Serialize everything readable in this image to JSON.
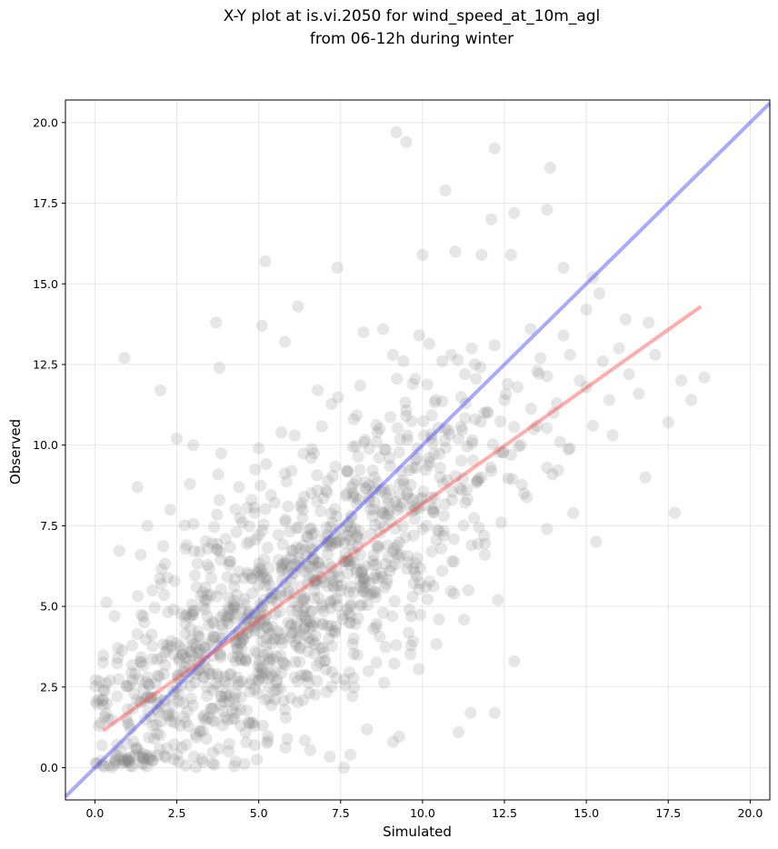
{
  "chart_data": {
    "type": "scatter",
    "title": [
      "X-Y plot at is.vi.2050 for wind_speed_at_10m_agl",
      "from 06-12h during winter"
    ],
    "xlabel": "Simulated",
    "ylabel": "Observed",
    "xlim": [
      -0.9,
      20.6
    ],
    "ylim": [
      -1.0,
      20.7
    ],
    "xticks": [
      0.0,
      2.5,
      5.0,
      7.5,
      10.0,
      12.5,
      15.0,
      17.5,
      20.0
    ],
    "yticks": [
      0.0,
      2.5,
      5.0,
      7.5,
      10.0,
      12.5,
      15.0,
      17.5,
      20.0
    ],
    "xtick_labels": [
      "0.0",
      "2.5",
      "5.0",
      "7.5",
      "10.0",
      "12.5",
      "15.0",
      "17.5",
      "20.0"
    ],
    "ytick_labels": [
      "0.0",
      "2.5",
      "5.0",
      "7.5",
      "10.0",
      "12.5",
      "15.0",
      "17.5",
      "20.0"
    ],
    "grid": true,
    "point_color": "#808080",
    "sample_points": [
      [
        0.9,
        12.7
      ],
      [
        2.0,
        11.7
      ],
      [
        3.7,
        13.8
      ],
      [
        3.8,
        12.4
      ],
      [
        5.1,
        13.7
      ],
      [
        5.2,
        15.7
      ],
      [
        6.2,
        14.3
      ],
      [
        5.8,
        13.2
      ],
      [
        7.4,
        15.5
      ],
      [
        9.2,
        19.7
      ],
      [
        9.5,
        19.4
      ],
      [
        10.7,
        17.9
      ],
      [
        12.2,
        19.2
      ],
      [
        12.1,
        17.0
      ],
      [
        13.9,
        18.6
      ],
      [
        13.8,
        17.3
      ],
      [
        12.8,
        17.2
      ],
      [
        10.0,
        15.9
      ],
      [
        11.0,
        16.0
      ],
      [
        11.8,
        15.9
      ],
      [
        12.7,
        15.9
      ],
      [
        14.3,
        15.5
      ],
      [
        15.2,
        15.2
      ],
      [
        15.4,
        14.7
      ],
      [
        16.2,
        13.9
      ],
      [
        16.9,
        13.8
      ],
      [
        17.1,
        12.8
      ],
      [
        17.9,
        12.0
      ],
      [
        18.6,
        12.1
      ],
      [
        18.2,
        11.4
      ],
      [
        17.5,
        10.7
      ],
      [
        16.8,
        9.0
      ],
      [
        17.7,
        7.9
      ],
      [
        15.3,
        7.0
      ],
      [
        14.6,
        7.9
      ],
      [
        13.8,
        7.4
      ],
      [
        12.8,
        3.3
      ],
      [
        12.2,
        1.7
      ],
      [
        11.1,
        1.1
      ],
      [
        9.1,
        0.8
      ],
      [
        7.8,
        0.4
      ],
      [
        7.6,
        0.0
      ],
      [
        1.3,
        8.7
      ],
      [
        1.6,
        7.5
      ],
      [
        2.3,
        8.0
      ],
      [
        2.9,
        8.8
      ],
      [
        3.2,
        6.7
      ],
      [
        3.8,
        8.3
      ],
      [
        4.4,
        8.7
      ],
      [
        5.0,
        9.9
      ],
      [
        6.1,
        10.3
      ],
      [
        6.8,
        11.7
      ],
      [
        8.2,
        13.5
      ],
      [
        8.8,
        13.6
      ],
      [
        9.9,
        13.4
      ],
      [
        10.6,
        12.6
      ],
      [
        11.6,
        12.5
      ],
      [
        12.6,
        11.9
      ],
      [
        13.5,
        10.6
      ],
      [
        14.2,
        10.1
      ],
      [
        0.4,
        1.5
      ],
      [
        0.7,
        3.4
      ],
      [
        0.9,
        0.2
      ],
      [
        1.2,
        2.3
      ],
      [
        1.5,
        4.5
      ],
      [
        1.8,
        0.9
      ],
      [
        2.1,
        2.9
      ],
      [
        2.4,
        4.9
      ],
      [
        2.6,
        1.3
      ],
      [
        2.9,
        3.6
      ],
      [
        3.1,
        5.6
      ],
      [
        3.4,
        0.9
      ],
      [
        3.6,
        2.4
      ],
      [
        3.9,
        4.3
      ],
      [
        4.1,
        6.4
      ],
      [
        4.3,
        1.7
      ],
      [
        4.6,
        3.3
      ],
      [
        4.8,
        5.4
      ],
      [
        5.0,
        7.2
      ],
      [
        5.2,
        2.1
      ],
      [
        5.5,
        4.0
      ],
      [
        5.7,
        6.1
      ],
      [
        5.9,
        8.1
      ],
      [
        6.1,
        2.8
      ],
      [
        6.4,
        4.7
      ],
      [
        6.6,
        6.8
      ],
      [
        6.8,
        8.6
      ],
      [
        7.0,
        3.3
      ],
      [
        7.3,
        5.2
      ],
      [
        7.5,
        7.4
      ],
      [
        7.7,
        9.2
      ],
      [
        7.9,
        4.0
      ],
      [
        8.2,
        5.9
      ],
      [
        8.4,
        8.0
      ],
      [
        8.6,
        10.1
      ],
      [
        8.8,
        4.8
      ],
      [
        9.1,
        6.7
      ],
      [
        9.3,
        8.8
      ],
      [
        9.5,
        10.9
      ],
      [
        9.7,
        5.3
      ],
      [
        10.0,
        7.4
      ],
      [
        10.2,
        9.6
      ],
      [
        10.4,
        11.4
      ],
      [
        10.6,
        6.1
      ],
      [
        10.9,
        8.3
      ],
      [
        11.1,
        10.2
      ],
      [
        11.3,
        12.2
      ],
      [
        11.5,
        6.9
      ],
      [
        11.8,
        9.0
      ],
      [
        12.0,
        11.0
      ],
      [
        12.2,
        13.1
      ],
      [
        12.4,
        7.6
      ],
      [
        12.7,
        9.7
      ],
      [
        12.9,
        11.8
      ],
      [
        13.1,
        8.5
      ],
      [
        13.4,
        10.5
      ],
      [
        13.6,
        12.7
      ],
      [
        13.8,
        9.3
      ],
      [
        14.1,
        11.3
      ],
      [
        14.3,
        13.4
      ],
      [
        14.5,
        9.9
      ],
      [
        14.8,
        12.0
      ],
      [
        15.0,
        14.2
      ],
      [
        15.2,
        10.6
      ],
      [
        15.5,
        12.6
      ],
      [
        15.7,
        11.4
      ],
      [
        16.0,
        13.0
      ],
      [
        16.3,
        12.2
      ],
      [
        16.6,
        11.6
      ],
      [
        2.5,
        10.2
      ],
      [
        3.0,
        10.0
      ],
      [
        2.7,
        2.0
      ],
      [
        1.0,
        1.4
      ],
      [
        1.9,
        1.8
      ],
      [
        2.2,
        0.6
      ],
      [
        3.3,
        2.8
      ],
      [
        4.0,
        2.2
      ],
      [
        4.6,
        1.1
      ],
      [
        5.3,
        3.4
      ],
      [
        5.8,
        1.8
      ],
      [
        6.2,
        5.0
      ],
      [
        6.5,
        3.6
      ],
      [
        6.9,
        5.9
      ],
      [
        7.2,
        4.4
      ],
      [
        7.6,
        6.4
      ],
      [
        8.0,
        7.2
      ],
      [
        8.3,
        5.4
      ],
      [
        8.7,
        7.6
      ],
      [
        9.0,
        6.1
      ],
      [
        9.4,
        8.2
      ],
      [
        9.8,
        9.3
      ],
      [
        10.3,
        8.0
      ],
      [
        10.7,
        10.5
      ],
      [
        11.2,
        8.6
      ],
      [
        11.6,
        10.8
      ],
      [
        12.1,
        9.2
      ],
      [
        12.5,
        11.4
      ],
      [
        13.0,
        10.0
      ],
      [
        13.5,
        12.3
      ],
      [
        14.0,
        11.0
      ],
      [
        14.5,
        12.8
      ],
      [
        15.0,
        11.8
      ],
      [
        4.2,
        4.9
      ],
      [
        4.7,
        4.2
      ],
      [
        5.4,
        5.2
      ],
      [
        5.9,
        4.5
      ],
      [
        6.3,
        6.2
      ],
      [
        6.7,
        5.5
      ],
      [
        7.1,
        7.0
      ],
      [
        7.4,
        6.1
      ],
      [
        7.8,
        5.0
      ],
      [
        8.1,
        6.6
      ],
      [
        8.5,
        4.3
      ],
      [
        8.9,
        5.7
      ],
      [
        9.2,
        3.8
      ],
      [
        9.6,
        4.9
      ],
      [
        10.1,
        5.6
      ],
      [
        10.5,
        4.6
      ],
      [
        10.9,
        6.4
      ],
      [
        11.4,
        5.5
      ],
      [
        11.9,
        6.6
      ],
      [
        12.3,
        5.2
      ],
      [
        0.6,
        4.7
      ],
      [
        1.4,
        6.6
      ],
      [
        2.8,
        6.9
      ],
      [
        4.5,
        7.6
      ],
      [
        6.0,
        9.2
      ],
      [
        7.9,
        10.8
      ],
      [
        9.7,
        11.9
      ],
      [
        11.5,
        13.0
      ],
      [
        13.3,
        13.6
      ],
      [
        15.8,
        10.3
      ]
    ],
    "series": [
      {
        "type": "reference_line",
        "color": "#4040ff",
        "x": [
          -0.9,
          20.6
        ],
        "y": [
          -0.9,
          20.6
        ]
      },
      {
        "type": "regression_line",
        "color": "#ff4a4a",
        "x": [
          0.25,
          18.5
        ],
        "y": [
          1.15,
          14.3
        ]
      }
    ]
  }
}
